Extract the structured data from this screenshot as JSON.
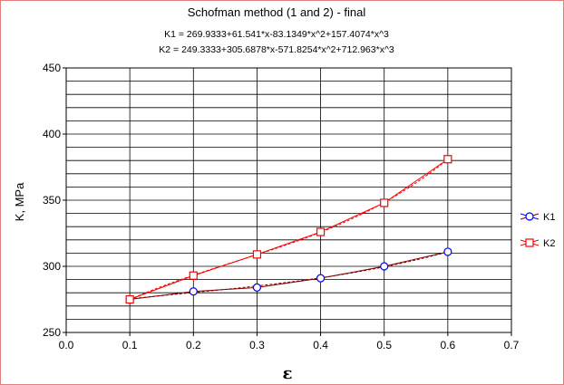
{
  "chart_data": {
    "type": "line",
    "title": "Schofman method (1 and 2) - final",
    "subtitle_lines": [
      "K1 = 269.9333+61.541*x-83.1349*x^2+157.4074*x^3",
      "K2 = 249.3333+305.6878*x-571.8254*x^2+712.963*x^3"
    ],
    "xlabel": "ε",
    "ylabel": "K, MPa",
    "xlim": [
      0.0,
      0.7
    ],
    "ylim": [
      250,
      450
    ],
    "xticks": [
      "0.0",
      "0.1",
      "0.2",
      "0.3",
      "0.4",
      "0.5",
      "0.6",
      "0.7"
    ],
    "yticks": [
      "250",
      "300",
      "350",
      "400",
      "450"
    ],
    "grid": true,
    "legend_position": "right",
    "x": [
      0.1,
      0.2,
      0.3,
      0.4,
      0.5,
      0.6
    ],
    "series": [
      {
        "name": "K1",
        "marker": "circle",
        "color": "#0000ff",
        "fit_color": "#800000",
        "values": [
          275,
          281,
          284,
          291,
          300,
          311
        ],
        "fit": [
          269.9333,
          61.541,
          -83.1349,
          157.4074
        ]
      },
      {
        "name": "K2",
        "marker": "square",
        "color": "#ff0000",
        "fit_color": "#ff0000",
        "values": [
          275,
          293,
          309,
          326,
          348,
          381
        ],
        "fit": [
          249.3333,
          305.6878,
          -571.8254,
          712.963
        ]
      }
    ]
  }
}
